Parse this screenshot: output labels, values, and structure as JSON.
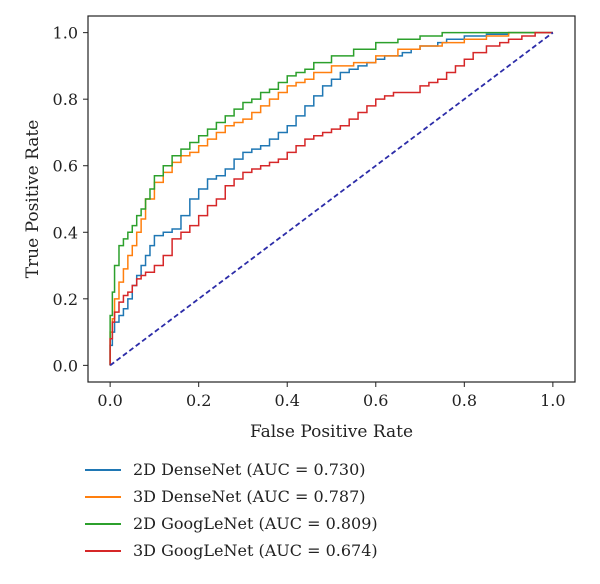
{
  "chart_data": {
    "type": "line",
    "xlabel": "False Positive Rate",
    "ylabel": "True Positive Rate",
    "xlim": [
      -0.05,
      1.05
    ],
    "ylim": [
      -0.05,
      1.05
    ],
    "xticks": [
      0.0,
      0.2,
      0.4,
      0.6,
      0.8,
      1.0
    ],
    "yticks": [
      0.0,
      0.2,
      0.4,
      0.6,
      0.8,
      1.0
    ],
    "xtick_labels": [
      "0.0",
      "0.2",
      "0.4",
      "0.6",
      "0.8",
      "1.0"
    ],
    "ytick_labels": [
      "0.0",
      "0.2",
      "0.4",
      "0.6",
      "0.8",
      "1.0"
    ],
    "grid": false,
    "legend_position": "below",
    "series": [
      {
        "name": "2D DenseNet (AUC = 0.730)",
        "color": "#1f77b4",
        "x": [
          0.0,
          0.005,
          0.01,
          0.02,
          0.03,
          0.04,
          0.05,
          0.06,
          0.07,
          0.08,
          0.09,
          0.1,
          0.12,
          0.14,
          0.16,
          0.18,
          0.2,
          0.22,
          0.24,
          0.26,
          0.28,
          0.3,
          0.32,
          0.34,
          0.36,
          0.38,
          0.4,
          0.42,
          0.44,
          0.46,
          0.48,
          0.5,
          0.52,
          0.54,
          0.56,
          0.58,
          0.6,
          0.62,
          0.64,
          0.66,
          0.68,
          0.7,
          0.72,
          0.74,
          0.76,
          0.8,
          0.85,
          0.9,
          0.95,
          1.0
        ],
        "y": [
          0.0,
          0.06,
          0.1,
          0.13,
          0.15,
          0.17,
          0.2,
          0.24,
          0.27,
          0.3,
          0.33,
          0.36,
          0.39,
          0.4,
          0.41,
          0.45,
          0.5,
          0.53,
          0.56,
          0.57,
          0.59,
          0.62,
          0.64,
          0.65,
          0.66,
          0.68,
          0.7,
          0.72,
          0.75,
          0.78,
          0.81,
          0.84,
          0.86,
          0.88,
          0.89,
          0.9,
          0.91,
          0.92,
          0.93,
          0.93,
          0.94,
          0.95,
          0.96,
          0.96,
          0.97,
          0.98,
          0.99,
          0.995,
          1.0,
          1.0
        ]
      },
      {
        "name": "3D DenseNet (AUC = 0.787)",
        "color": "#ff7f0e",
        "x": [
          0.0,
          0.005,
          0.01,
          0.02,
          0.03,
          0.04,
          0.05,
          0.06,
          0.07,
          0.08,
          0.1,
          0.12,
          0.14,
          0.16,
          0.18,
          0.2,
          0.22,
          0.24,
          0.26,
          0.28,
          0.3,
          0.32,
          0.34,
          0.36,
          0.38,
          0.4,
          0.42,
          0.44,
          0.46,
          0.5,
          0.55,
          0.6,
          0.65,
          0.7,
          0.75,
          0.8,
          0.85,
          0.9,
          0.95,
          1.0
        ],
        "y": [
          0.0,
          0.1,
          0.14,
          0.2,
          0.25,
          0.29,
          0.33,
          0.36,
          0.4,
          0.44,
          0.5,
          0.55,
          0.58,
          0.61,
          0.63,
          0.64,
          0.66,
          0.68,
          0.7,
          0.72,
          0.73,
          0.74,
          0.76,
          0.78,
          0.8,
          0.82,
          0.84,
          0.85,
          0.86,
          0.88,
          0.9,
          0.91,
          0.93,
          0.95,
          0.96,
          0.97,
          0.98,
          0.99,
          1.0,
          1.0
        ]
      },
      {
        "name": "2D GoogLeNet (AUC = 0.809)",
        "color": "#2ca02c",
        "x": [
          0.0,
          0.005,
          0.01,
          0.02,
          0.03,
          0.04,
          0.05,
          0.06,
          0.07,
          0.08,
          0.09,
          0.1,
          0.12,
          0.14,
          0.16,
          0.18,
          0.2,
          0.22,
          0.24,
          0.26,
          0.28,
          0.3,
          0.32,
          0.34,
          0.36,
          0.38,
          0.4,
          0.42,
          0.44,
          0.46,
          0.5,
          0.55,
          0.6,
          0.65,
          0.7,
          0.75,
          0.8,
          0.85,
          0.9,
          0.95,
          1.0
        ],
        "y": [
          0.0,
          0.15,
          0.22,
          0.3,
          0.36,
          0.38,
          0.4,
          0.42,
          0.45,
          0.47,
          0.5,
          0.53,
          0.57,
          0.6,
          0.63,
          0.65,
          0.67,
          0.69,
          0.71,
          0.73,
          0.75,
          0.77,
          0.79,
          0.8,
          0.82,
          0.83,
          0.85,
          0.87,
          0.88,
          0.89,
          0.91,
          0.93,
          0.95,
          0.97,
          0.98,
          0.99,
          1.0,
          1.0,
          1.0,
          1.0,
          1.0
        ]
      },
      {
        "name": "3D GoogLeNet (AUC = 0.674)",
        "color": "#d62728",
        "x": [
          0.0,
          0.005,
          0.01,
          0.02,
          0.03,
          0.04,
          0.05,
          0.06,
          0.07,
          0.08,
          0.1,
          0.12,
          0.14,
          0.16,
          0.18,
          0.2,
          0.22,
          0.24,
          0.26,
          0.28,
          0.3,
          0.32,
          0.34,
          0.36,
          0.38,
          0.4,
          0.42,
          0.44,
          0.46,
          0.48,
          0.5,
          0.52,
          0.54,
          0.56,
          0.58,
          0.6,
          0.62,
          0.64,
          0.66,
          0.68,
          0.7,
          0.72,
          0.74,
          0.76,
          0.78,
          0.8,
          0.82,
          0.85,
          0.88,
          0.9,
          0.93,
          0.96,
          1.0
        ],
        "y": [
          0.0,
          0.08,
          0.13,
          0.16,
          0.19,
          0.21,
          0.22,
          0.24,
          0.26,
          0.27,
          0.28,
          0.3,
          0.33,
          0.38,
          0.4,
          0.42,
          0.45,
          0.48,
          0.5,
          0.54,
          0.56,
          0.58,
          0.59,
          0.6,
          0.61,
          0.62,
          0.64,
          0.66,
          0.68,
          0.69,
          0.7,
          0.71,
          0.72,
          0.74,
          0.76,
          0.78,
          0.8,
          0.81,
          0.82,
          0.82,
          0.82,
          0.84,
          0.85,
          0.86,
          0.88,
          0.9,
          0.92,
          0.94,
          0.96,
          0.97,
          0.98,
          0.99,
          1.0
        ]
      }
    ],
    "reference_line": {
      "x": [
        0.0,
        1.0
      ],
      "y": [
        0.0,
        1.0
      ],
      "color": "#2c2ca8",
      "style": "dashed"
    }
  }
}
